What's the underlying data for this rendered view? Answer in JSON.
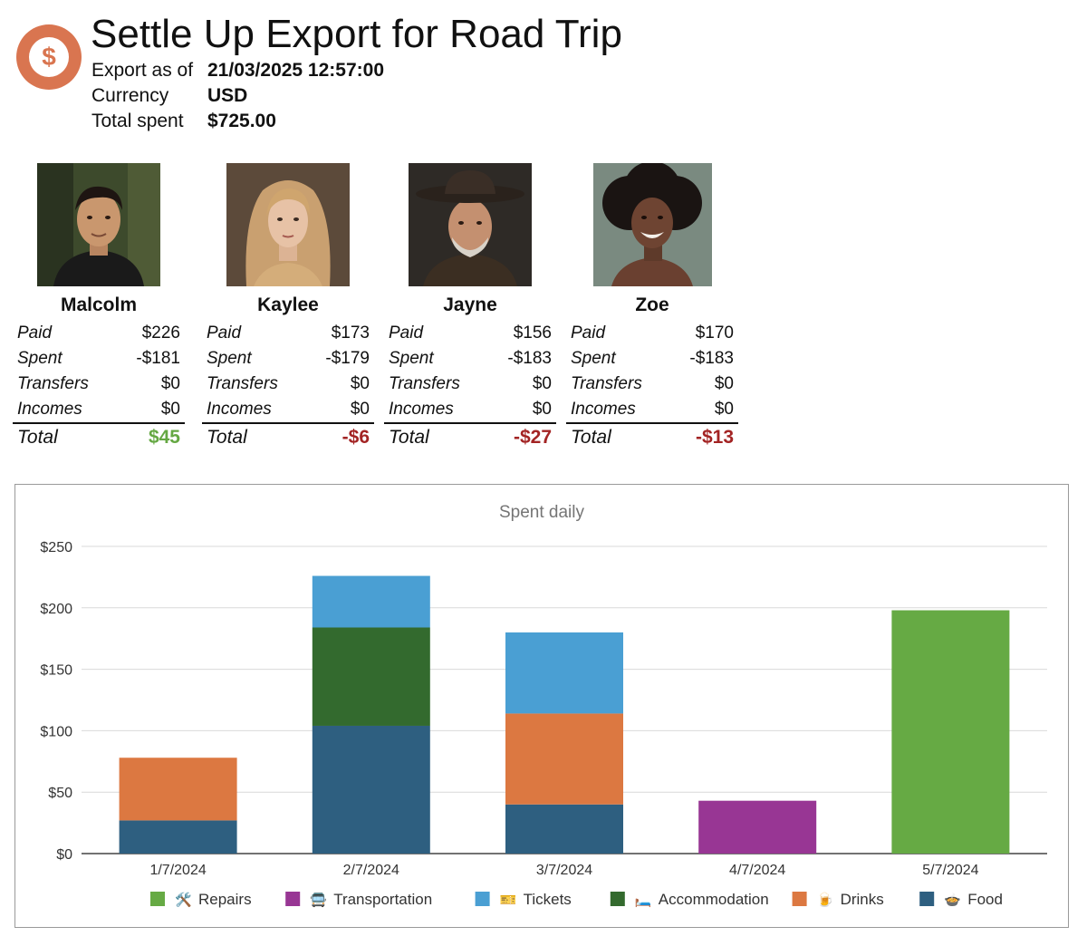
{
  "header": {
    "title": "Settle Up Export for Road Trip",
    "logo_symbol": "$",
    "meta": [
      {
        "label": "Export as of",
        "value": "21/03/2025 12:57:00"
      },
      {
        "label": "Currency",
        "value": "USD"
      },
      {
        "label": "Total spent",
        "value": "$725.00"
      }
    ]
  },
  "people": [
    {
      "name": "Malcolm",
      "paid": "$226",
      "spent": "-$181",
      "transfers": "$0",
      "incomes": "$0",
      "total": "$45",
      "total_sign": "positive"
    },
    {
      "name": "Kaylee",
      "paid": "$173",
      "spent": "-$179",
      "transfers": "$0",
      "incomes": "$0",
      "total": "-$6",
      "total_sign": "negative"
    },
    {
      "name": "Jayne",
      "paid": "$156",
      "spent": "-$183",
      "transfers": "$0",
      "incomes": "$0",
      "total": "-$27",
      "total_sign": "negative"
    },
    {
      "name": "Zoe",
      "paid": "$170",
      "spent": "-$183",
      "transfers": "$0",
      "incomes": "$0",
      "total": "-$13",
      "total_sign": "negative"
    }
  ],
  "labels": {
    "paid": "Paid",
    "spent": "Spent",
    "transfers": "Transfers",
    "incomes": "Incomes",
    "total": "Total"
  },
  "colors": {
    "brand": "#d97550",
    "positive": "#65a843",
    "negative": "#a32424"
  },
  "chart_data": {
    "type": "bar",
    "stacked": true,
    "title": "Spent daily",
    "categories": [
      "1/7/2024",
      "2/7/2024",
      "3/7/2024",
      "4/7/2024",
      "5/7/2024"
    ],
    "ylim": [
      0,
      250
    ],
    "yticks": [
      0,
      50,
      100,
      150,
      200,
      250
    ],
    "ytick_labels": [
      "$0",
      "$50",
      "$100",
      "$150",
      "$200",
      "$250"
    ],
    "grid": true,
    "legend_position": "bottom",
    "series": [
      {
        "name": "Food",
        "icon": "🍲",
        "color": "#2e5f80",
        "values": [
          27,
          104,
          40,
          0,
          0
        ]
      },
      {
        "name": "Drinks",
        "icon": "🍺",
        "color": "#dc7841",
        "values": [
          51,
          0,
          74,
          0,
          0
        ]
      },
      {
        "name": "Accommodation",
        "icon": "🛏️",
        "color": "#336a2e",
        "values": [
          0,
          80,
          0,
          0,
          0
        ]
      },
      {
        "name": "Tickets",
        "icon": "🎫",
        "color": "#4a9fd3",
        "values": [
          0,
          42,
          66,
          0,
          0
        ]
      },
      {
        "name": "Transportation",
        "icon": "🚍",
        "color": "#983694",
        "values": [
          0,
          0,
          0,
          43,
          0
        ]
      },
      {
        "name": "Repairs",
        "icon": "🛠️",
        "color": "#66aa44",
        "values": [
          0,
          0,
          0,
          0,
          198
        ]
      }
    ],
    "legend_order": [
      "Repairs",
      "Transportation",
      "Tickets",
      "Accommodation",
      "Drinks",
      "Food"
    ]
  }
}
